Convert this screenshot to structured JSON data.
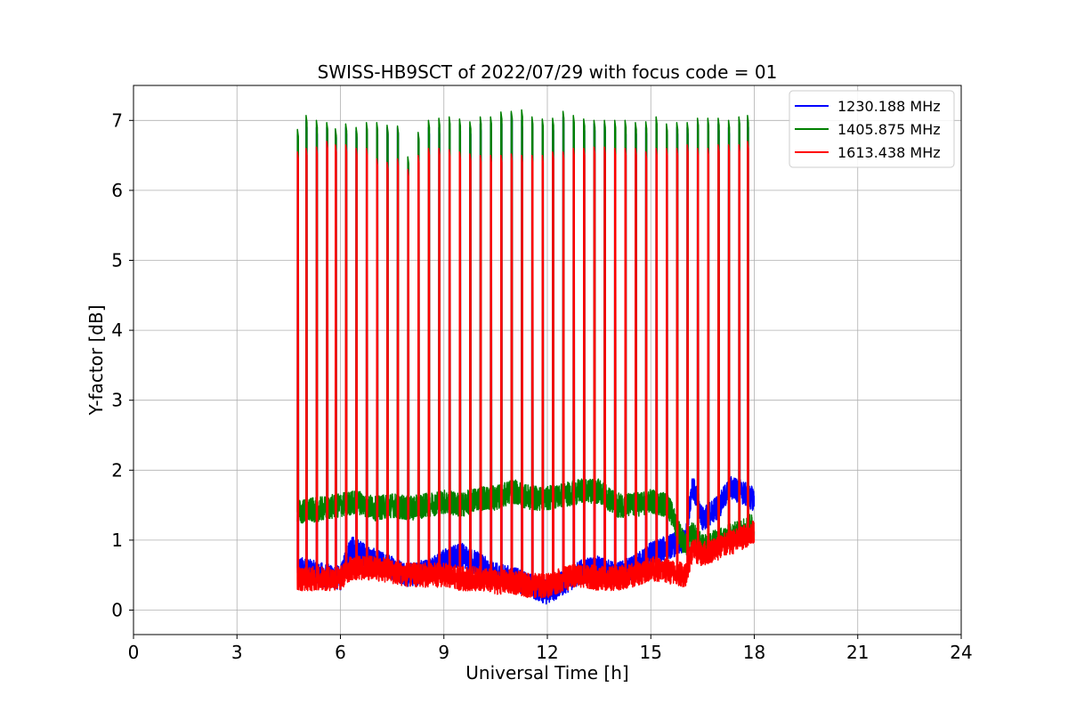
{
  "chart_data": {
    "type": "line",
    "title": "SWISS-HB9SCT of 2022/07/29 with focus code = 01",
    "xlabel": "Universal Time [h]",
    "ylabel": "Y-factor [dB]",
    "xlim": [
      0,
      24
    ],
    "ylim": [
      -0.35,
      7.5
    ],
    "xticks": [
      0,
      3,
      6,
      9,
      12,
      15,
      18,
      21,
      24
    ],
    "yticks": [
      0,
      1,
      2,
      3,
      4,
      5,
      6,
      7
    ],
    "grid": true,
    "legend_position": "top-right",
    "series": [
      {
        "name": "1230.188 MHz",
        "color": "#0000ff",
        "x": [
          4.75,
          5.5,
          6.0,
          6.3,
          7.0,
          7.5,
          8.0,
          8.5,
          9.0,
          9.5,
          10.0,
          10.5,
          11.0,
          11.5,
          12.0,
          12.5,
          13.0,
          13.5,
          14.0,
          14.5,
          15.0,
          15.5,
          16.0,
          16.2,
          16.5,
          17.0,
          17.3,
          17.6,
          17.9,
          18.0
        ],
        "values": [
          0.6,
          0.5,
          0.45,
          0.9,
          0.7,
          0.6,
          0.5,
          0.55,
          0.7,
          0.8,
          0.65,
          0.5,
          0.45,
          0.35,
          0.25,
          0.4,
          0.55,
          0.6,
          0.5,
          0.6,
          0.8,
          0.9,
          1.0,
          1.8,
          1.3,
          1.5,
          1.75,
          1.7,
          1.6,
          1.6
        ],
        "spikes": [
          4.75,
          5.0,
          5.3,
          5.6,
          5.85,
          6.15,
          6.45,
          6.75,
          7.05,
          7.35,
          7.65,
          7.95,
          8.25,
          8.55,
          8.85,
          9.15,
          9.45,
          9.75,
          10.05,
          10.35,
          10.65,
          10.95,
          11.25,
          11.55,
          11.85,
          12.15,
          12.45,
          12.75,
          13.05,
          13.35,
          13.65,
          13.95,
          14.25,
          14.55,
          14.85,
          15.15,
          15.45,
          15.75,
          16.05,
          16.35,
          16.65,
          16.95,
          17.25,
          17.55,
          17.8
        ],
        "spike_peaks": [
          6.8,
          7.0,
          6.9,
          6.9,
          6.85,
          6.9,
          6.85,
          6.9,
          6.9,
          6.9,
          6.9,
          6.4,
          6.8,
          6.9,
          6.9,
          6.95,
          6.95,
          6.9,
          6.95,
          6.95,
          7.05,
          7.1,
          7.0,
          7.0,
          6.95,
          6.95,
          7.05,
          7.0,
          6.95,
          6.95,
          6.95,
          6.95,
          6.9,
          6.9,
          6.9,
          6.95,
          6.9,
          6.9,
          6.9,
          6.95,
          6.95,
          6.95,
          6.9,
          6.95,
          7.0
        ]
      },
      {
        "name": "1405.875 MHz",
        "color": "#008000",
        "x": [
          4.75,
          5.5,
          6.0,
          6.5,
          7.0,
          7.5,
          8.0,
          8.5,
          9.0,
          9.5,
          10.0,
          10.5,
          11.0,
          11.5,
          12.0,
          12.5,
          13.0,
          13.5,
          14.0,
          14.5,
          15.0,
          15.5,
          16.0,
          16.2,
          16.5,
          17.0,
          17.5,
          17.9,
          18.0
        ],
        "values": [
          1.4,
          1.45,
          1.5,
          1.55,
          1.45,
          1.5,
          1.45,
          1.5,
          1.55,
          1.5,
          1.6,
          1.6,
          1.7,
          1.6,
          1.6,
          1.65,
          1.7,
          1.7,
          1.5,
          1.5,
          1.55,
          1.5,
          0.9,
          1.1,
          0.9,
          1.0,
          1.1,
          1.2,
          1.2
        ],
        "spikes": [
          4.75,
          5.0,
          5.3,
          5.6,
          5.85,
          6.15,
          6.45,
          6.75,
          7.05,
          7.35,
          7.65,
          7.95,
          8.25,
          8.55,
          8.85,
          9.15,
          9.45,
          9.75,
          10.05,
          10.35,
          10.65,
          10.95,
          11.25,
          11.55,
          11.85,
          12.15,
          12.45,
          12.75,
          13.05,
          13.35,
          13.65,
          13.95,
          14.25,
          14.55,
          14.85,
          15.15,
          15.45,
          15.75,
          16.05,
          16.35,
          16.65,
          16.95,
          17.25,
          17.55,
          17.8
        ],
        "spike_peaks": [
          6.87,
          7.07,
          7.0,
          6.97,
          6.88,
          6.95,
          6.9,
          6.97,
          6.97,
          6.93,
          6.92,
          6.48,
          6.83,
          7.0,
          7.03,
          7.05,
          7.02,
          6.98,
          7.05,
          7.05,
          7.12,
          7.13,
          7.15,
          7.05,
          7.02,
          7.03,
          7.13,
          7.07,
          7.02,
          7.0,
          7.0,
          7.0,
          7.0,
          6.97,
          6.98,
          7.05,
          6.95,
          6.97,
          6.97,
          7.03,
          7.03,
          7.03,
          7.0,
          7.05,
          7.07
        ]
      },
      {
        "name": "1613.438 MHz",
        "color": "#ff0000",
        "x": [
          4.75,
          5.5,
          6.0,
          6.3,
          7.0,
          7.5,
          8.0,
          8.5,
          9.0,
          9.5,
          10.0,
          10.5,
          11.0,
          11.5,
          12.0,
          12.5,
          13.0,
          13.5,
          14.0,
          14.5,
          15.0,
          15.5,
          16.0,
          16.2,
          16.5,
          17.0,
          17.5,
          17.9,
          18.0
        ],
        "values": [
          0.45,
          0.45,
          0.45,
          0.6,
          0.6,
          0.55,
          0.5,
          0.5,
          0.5,
          0.45,
          0.45,
          0.4,
          0.4,
          0.35,
          0.35,
          0.45,
          0.5,
          0.45,
          0.45,
          0.5,
          0.6,
          0.55,
          0.5,
          0.85,
          0.8,
          0.9,
          1.0,
          1.1,
          1.1
        ],
        "spikes": [
          4.75,
          5.0,
          5.3,
          5.6,
          5.85,
          6.15,
          6.45,
          6.75,
          7.05,
          7.35,
          7.65,
          7.95,
          8.25,
          8.55,
          8.85,
          9.15,
          9.45,
          9.75,
          10.05,
          10.35,
          10.65,
          10.95,
          11.25,
          11.55,
          11.85,
          12.15,
          12.45,
          12.75,
          13.05,
          13.35,
          13.65,
          13.95,
          14.25,
          14.55,
          14.85,
          15.15,
          15.45,
          15.75,
          16.05,
          16.35,
          16.65,
          16.95,
          17.25,
          17.55,
          17.8
        ],
        "spike_peaks": [
          6.55,
          6.6,
          6.62,
          6.7,
          6.65,
          6.65,
          6.6,
          6.6,
          6.45,
          6.4,
          6.45,
          6.3,
          6.5,
          6.6,
          6.6,
          6.58,
          6.55,
          6.52,
          6.5,
          6.5,
          6.5,
          6.52,
          6.5,
          6.5,
          6.5,
          6.55,
          6.55,
          6.6,
          6.6,
          6.62,
          6.62,
          6.6,
          6.6,
          6.6,
          6.55,
          6.6,
          6.6,
          6.6,
          6.65,
          6.6,
          6.6,
          6.65,
          6.65,
          6.65,
          6.7
        ]
      }
    ]
  }
}
